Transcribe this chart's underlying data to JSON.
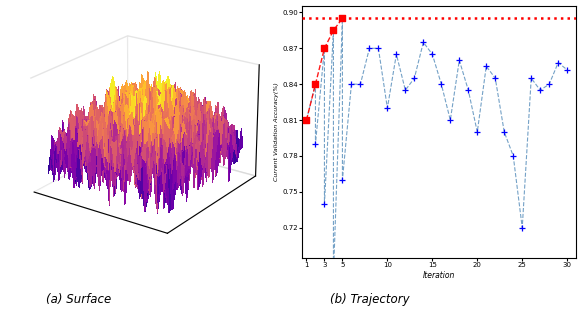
{
  "fig_width": 5.82,
  "fig_height": 3.22,
  "dpi": 100,
  "surface_elev": 22,
  "surface_azim": -55,
  "colormap": "plasma",
  "grid_size": 40,
  "label_a": "(a) Surface",
  "label_b": "(b) Trajectory",
  "traj_xlabel": "Iteration",
  "traj_ylabel": "Current Validation Accuracy(%)",
  "blue_x": [
    1,
    2,
    2,
    3,
    3,
    4,
    4,
    5,
    5,
    6,
    7,
    8,
    9,
    10,
    11,
    12,
    13,
    14,
    15,
    16,
    17,
    18,
    19,
    20,
    21,
    22,
    23,
    24,
    25,
    26,
    27,
    28,
    29,
    30
  ],
  "blue_y": [
    0.81,
    0.84,
    0.79,
    0.87,
    0.74,
    0.885,
    0.68,
    0.895,
    0.76,
    0.84,
    0.84,
    0.87,
    0.87,
    0.82,
    0.865,
    0.835,
    0.845,
    0.875,
    0.865,
    0.84,
    0.81,
    0.86,
    0.835,
    0.8,
    0.855,
    0.845,
    0.8,
    0.78,
    0.72,
    0.845,
    0.835,
    0.84,
    0.858,
    0.852
  ],
  "red_x": [
    1,
    2,
    3,
    4,
    5
  ],
  "red_y": [
    0.81,
    0.84,
    0.87,
    0.885,
    0.895
  ],
  "hline_y": 0.895,
  "ytick_labels": [
    "0.72",
    "0.75",
    "0.78",
    "0.81",
    "0.84",
    "0.87",
    "0.90"
  ],
  "ytick_vals": [
    0.72,
    0.75,
    0.78,
    0.81,
    0.84,
    0.87,
    0.9
  ],
  "xtick_vals": [
    1,
    3,
    5,
    10,
    15,
    20,
    25,
    30
  ],
  "xtick_labels": [
    "1",
    "3",
    "5",
    "10",
    "15",
    "20",
    "25",
    "30"
  ],
  "xlim": [
    0.5,
    31
  ],
  "ylim": [
    0.695,
    0.905
  ],
  "bg_color": "#ffffff",
  "surface_bg": "#f0f0f0"
}
